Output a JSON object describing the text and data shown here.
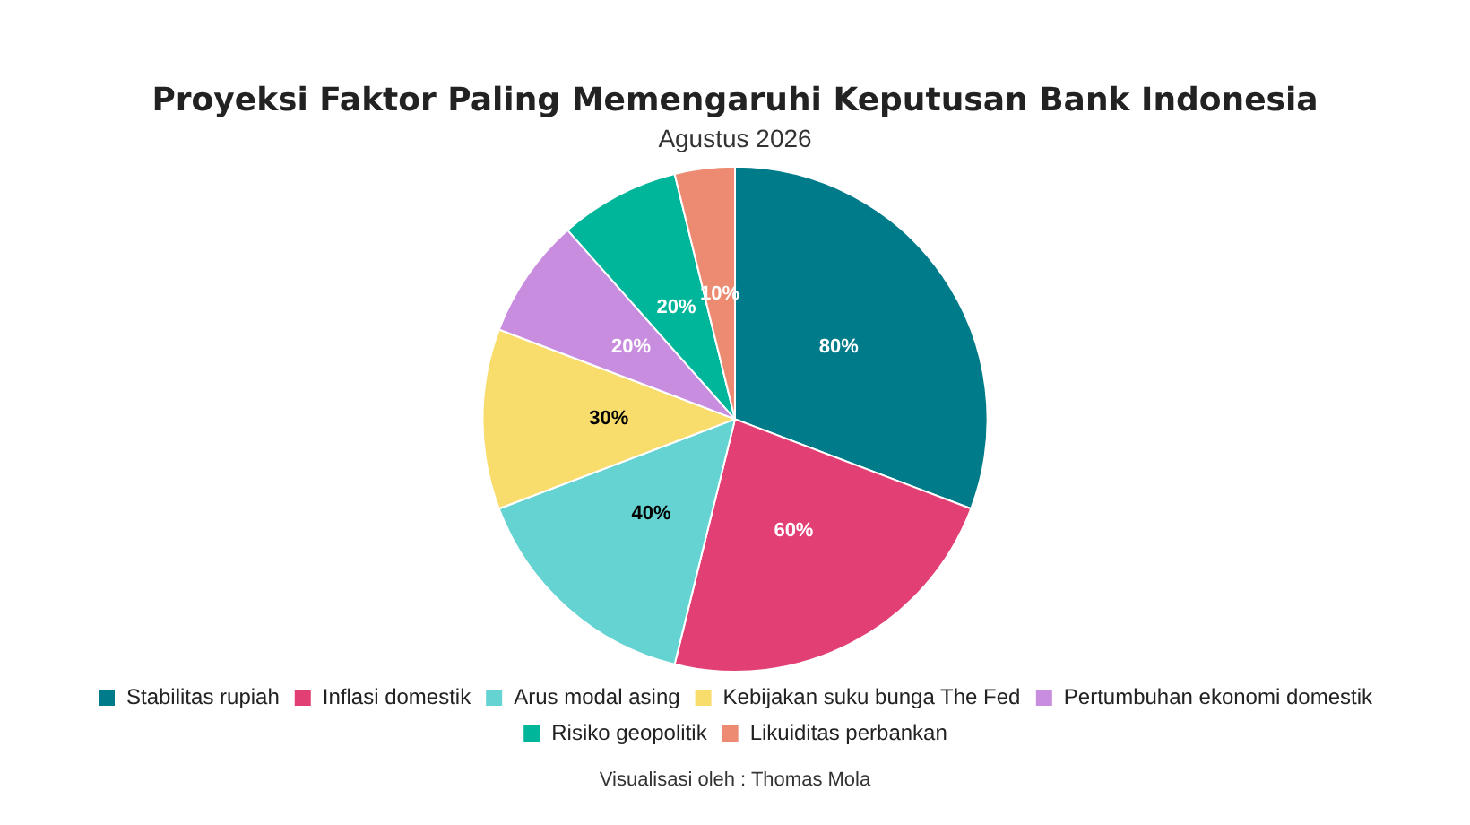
{
  "chart_data": {
    "type": "pie",
    "title": "Proyeksi Faktor Paling Memengaruhi Keputusan Bank Indonesia",
    "subtitle": "Agustus 2026",
    "categories": [
      "Stabilitas rupiah",
      "Inflasi domestik",
      "Arus modal asing",
      "Kebijakan suku bunga The Fed",
      "Pertumbuhan ekonomi domestik",
      "Risiko geopolitik",
      "Likuiditas perbankan"
    ],
    "values": [
      80,
      60,
      40,
      30,
      20,
      20,
      10
    ],
    "value_labels": [
      "80%",
      "60%",
      "40%",
      "30%",
      "20%",
      "20%",
      "10%"
    ],
    "colors": [
      "#007b8a",
      "#e23f75",
      "#66d3d3",
      "#f8dc6c",
      "#c98de0",
      "#00b69a",
      "#ec8b71"
    ],
    "legend": "bottom",
    "annotations": [
      "Visualisasi oleh : Thomas Mola"
    ]
  }
}
